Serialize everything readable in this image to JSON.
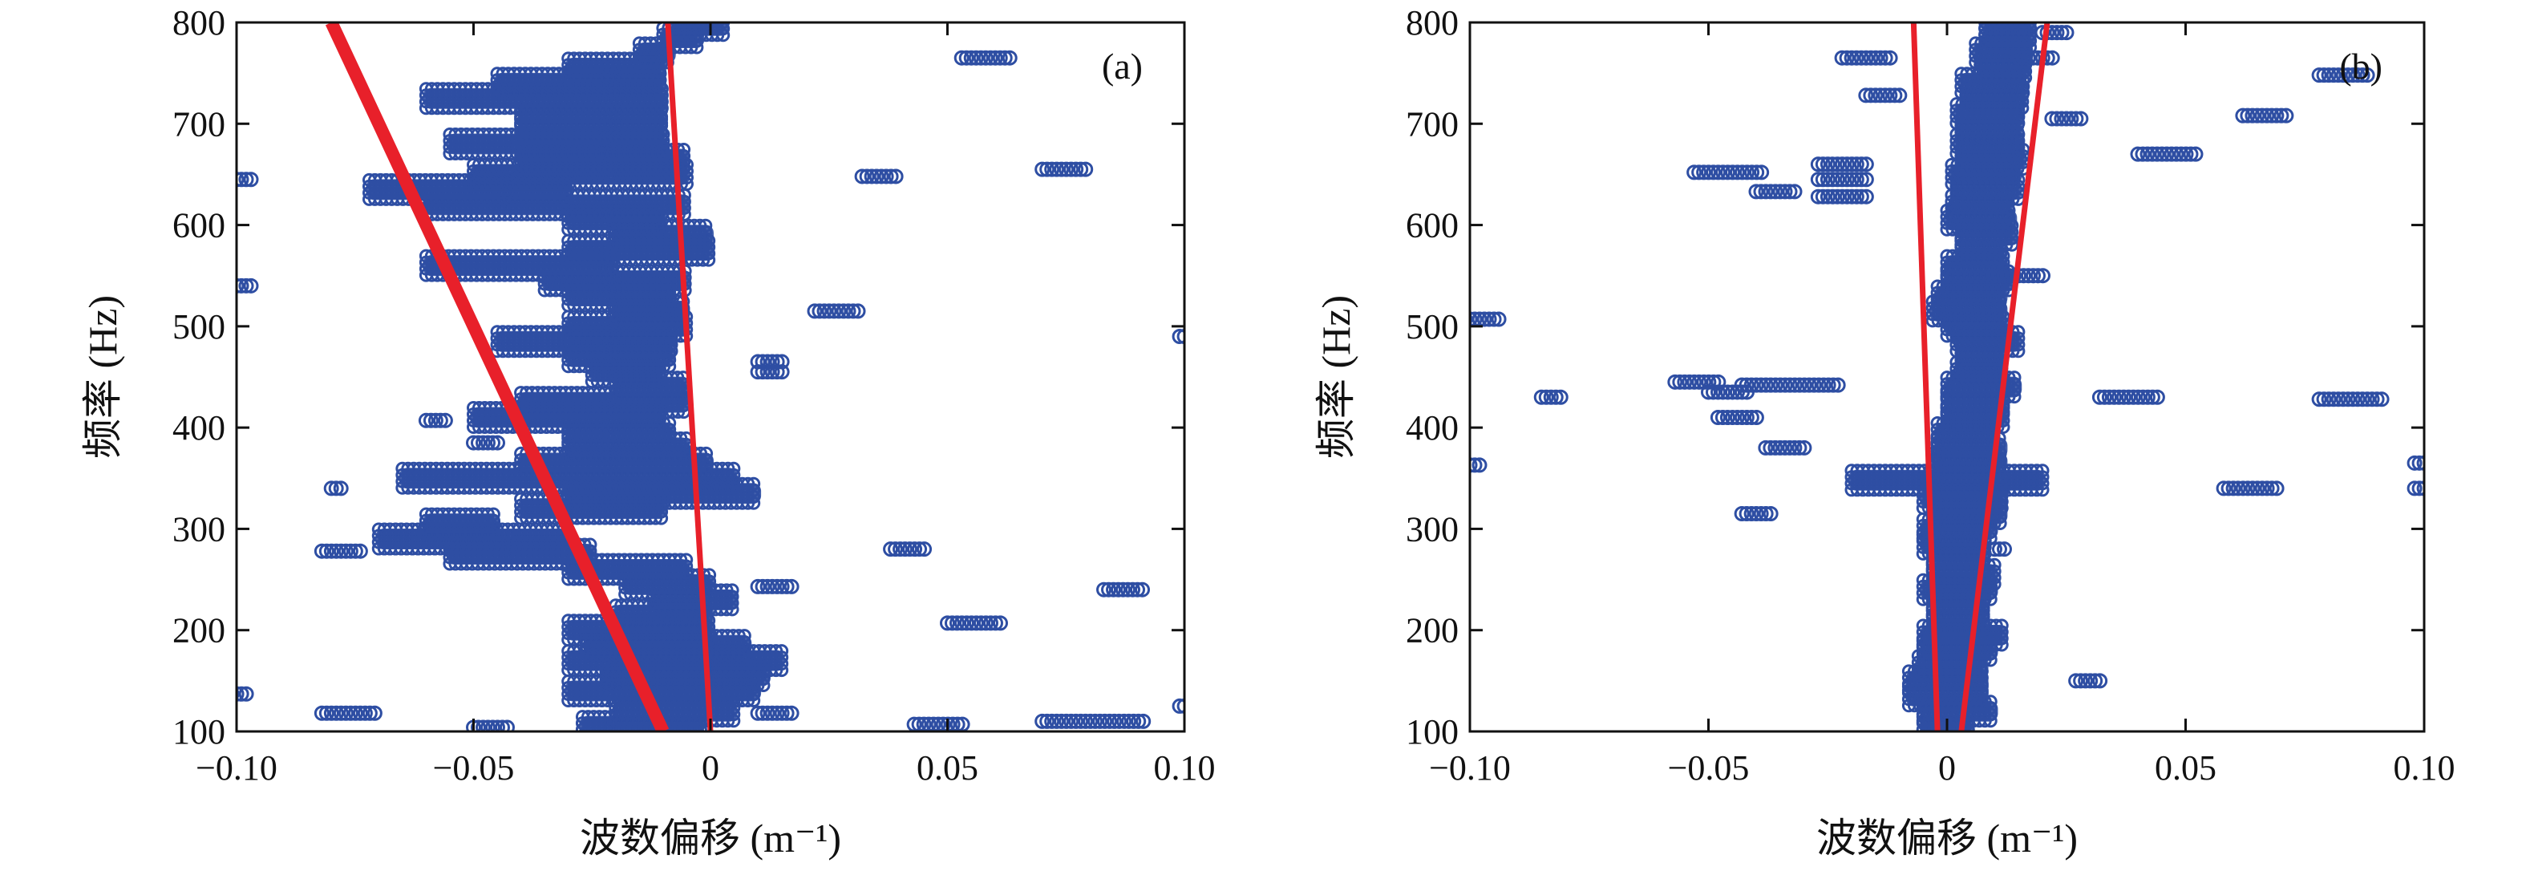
{
  "figure": {
    "panels": [
      {
        "id": "a",
        "tag": "(a)",
        "xlabel": "波数偏移 (m⁻¹)",
        "ylabel": "频率 (Hz)"
      },
      {
        "id": "b",
        "tag": "(b)",
        "xlabel": "波数偏移 (m⁻¹)",
        "ylabel": "频率 (Hz)"
      }
    ]
  },
  "chart_data": [
    {
      "type": "scatter",
      "panel_label": "(a)",
      "title": "",
      "xlabel": "波数偏移 (m⁻¹)",
      "ylabel": "频率 (Hz)",
      "xlim": [
        -0.1,
        0.1
      ],
      "ylim": [
        100,
        800
      ],
      "xticks": [
        "−0.10",
        "−0.05",
        "0",
        "0.05",
        "0.10"
      ],
      "yticks": [
        "100",
        "200",
        "300",
        "400",
        "500",
        "600",
        "700",
        "800"
      ],
      "grid": false,
      "marker_color": "#2e4ea3",
      "line_color": "#e8202a",
      "main_band": [
        [
          -0.027,
          -0.002,
          105
        ],
        [
          -0.02,
          0.005,
          120
        ],
        [
          -0.03,
          0.01,
          140
        ],
        [
          -0.022,
          0.012,
          155
        ],
        [
          -0.03,
          0.015,
          170
        ],
        [
          -0.026,
          0.008,
          185
        ],
        [
          -0.03,
          0.0,
          200
        ],
        [
          -0.02,
          0.0,
          215
        ],
        [
          -0.012,
          0.005,
          230
        ],
        [
          -0.018,
          0.0,
          245
        ],
        [
          -0.03,
          -0.005,
          260
        ],
        [
          -0.055,
          -0.025,
          275
        ],
        [
          -0.07,
          -0.03,
          290
        ],
        [
          -0.06,
          -0.045,
          305
        ],
        [
          -0.04,
          -0.01,
          320
        ],
        [
          -0.03,
          0.01,
          335
        ],
        [
          -0.065,
          0.005,
          350
        ],
        [
          -0.04,
          0.0,
          365
        ],
        [
          -0.03,
          -0.005,
          380
        ],
        [
          -0.03,
          -0.008,
          395
        ],
        [
          -0.05,
          -0.01,
          410
        ],
        [
          -0.04,
          -0.005,
          425
        ],
        [
          -0.02,
          -0.005,
          440
        ],
        [
          -0.025,
          -0.01,
          455
        ],
        [
          -0.03,
          -0.008,
          470
        ],
        [
          -0.045,
          -0.008,
          485
        ],
        [
          -0.03,
          -0.005,
          500
        ],
        [
          -0.02,
          -0.005,
          515
        ],
        [
          -0.03,
          -0.008,
          530
        ],
        [
          -0.035,
          -0.005,
          545
        ],
        [
          -0.06,
          -0.02,
          560
        ],
        [
          -0.03,
          0.0,
          575
        ],
        [
          -0.02,
          0.0,
          590
        ],
        [
          -0.03,
          -0.01,
          605
        ],
        [
          -0.06,
          -0.005,
          620
        ],
        [
          -0.072,
          -0.03,
          635
        ],
        [
          -0.05,
          -0.005,
          650
        ],
        [
          -0.04,
          -0.005,
          665
        ],
        [
          -0.055,
          -0.01,
          680
        ],
        [
          -0.04,
          -0.01,
          695
        ],
        [
          -0.04,
          -0.01,
          710
        ],
        [
          -0.06,
          -0.01,
          725
        ],
        [
          -0.045,
          -0.01,
          740
        ],
        [
          -0.03,
          -0.01,
          755
        ],
        [
          -0.015,
          -0.008,
          770
        ],
        [
          -0.01,
          -0.002,
          785
        ],
        [
          -0.008,
          0.003,
          797
        ]
      ],
      "outliers": [
        [
          -0.1,
          -0.097,
          645
        ],
        [
          -0.1,
          -0.097,
          540
        ],
        [
          -0.101,
          -0.098,
          137
        ],
        [
          -0.08,
          -0.078,
          340
        ],
        [
          -0.082,
          -0.073,
          278
        ],
        [
          -0.082,
          -0.07,
          118
        ],
        [
          -0.06,
          -0.056,
          407
        ],
        [
          -0.05,
          -0.045,
          385
        ],
        [
          -0.05,
          -0.042,
          104
        ],
        [
          0.01,
          0.016,
          465
        ],
        [
          0.01,
          0.016,
          455
        ],
        [
          0.01,
          0.018,
          243
        ],
        [
          0.01,
          0.018,
          118
        ],
        [
          0.022,
          0.032,
          515
        ],
        [
          0.032,
          0.04,
          648
        ],
        [
          0.038,
          0.046,
          280
        ],
        [
          0.043,
          0.054,
          107
        ],
        [
          0.05,
          0.062,
          207
        ],
        [
          0.053,
          0.064,
          765
        ],
        [
          0.07,
          0.08,
          655
        ],
        [
          0.07,
          0.092,
          110
        ],
        [
          0.083,
          0.092,
          240
        ],
        [
          0.099,
          0.1,
          125
        ],
        [
          0.099,
          0.1,
          490
        ]
      ],
      "fit_lines": [
        {
          "x": [
            -0.08,
            -0.01
          ],
          "y": [
            800,
            100
          ],
          "weight": "thick"
        },
        {
          "x": [
            -0.009,
            0.0
          ],
          "y": [
            800,
            100
          ],
          "weight": "thin"
        }
      ]
    },
    {
      "type": "scatter",
      "panel_label": "(b)",
      "title": "",
      "xlabel": "波数偏移 (m⁻¹)",
      "ylabel": "频率 (Hz)",
      "xlim": [
        -0.1,
        0.1
      ],
      "ylim": [
        100,
        800
      ],
      "xticks": [
        "−0.10",
        "−0.05",
        "0",
        "0.05",
        "0.10"
      ],
      "yticks": [
        "100",
        "200",
        "300",
        "400",
        "500",
        "600",
        "700",
        "800"
      ],
      "grid": false,
      "marker_color": "#2e4ea3",
      "line_color": "#e8202a",
      "main_band": [
        [
          -0.005,
          0.005,
          105
        ],
        [
          -0.005,
          0.01,
          120
        ],
        [
          -0.008,
          0.008,
          135
        ],
        [
          -0.008,
          0.008,
          150
        ],
        [
          -0.006,
          0.008,
          165
        ],
        [
          -0.005,
          0.01,
          180
        ],
        [
          -0.005,
          0.012,
          195
        ],
        [
          -0.003,
          0.008,
          210
        ],
        [
          -0.003,
          0.008,
          225
        ],
        [
          -0.005,
          0.01,
          240
        ],
        [
          -0.003,
          0.01,
          255
        ],
        [
          -0.003,
          0.008,
          270
        ],
        [
          -0.005,
          0.008,
          285
        ],
        [
          -0.005,
          0.01,
          300
        ],
        [
          -0.003,
          0.012,
          315
        ],
        [
          -0.005,
          0.012,
          330
        ],
        [
          -0.02,
          0.02,
          348
        ],
        [
          -0.003,
          0.012,
          365
        ],
        [
          -0.002,
          0.012,
          380
        ],
        [
          -0.002,
          0.01,
          395
        ],
        [
          0.0,
          0.012,
          410
        ],
        [
          0.0,
          0.012,
          425
        ],
        [
          0.0,
          0.015,
          440
        ],
        [
          0.002,
          0.012,
          455
        ],
        [
          0.003,
          0.012,
          470
        ],
        [
          0.002,
          0.015,
          485
        ],
        [
          0.0,
          0.012,
          500
        ],
        [
          -0.003,
          0.012,
          515
        ],
        [
          -0.002,
          0.012,
          530
        ],
        [
          0.0,
          0.014,
          545
        ],
        [
          0.0,
          0.012,
          560
        ],
        [
          0.003,
          0.012,
          575
        ],
        [
          0.003,
          0.014,
          590
        ],
        [
          0.0,
          0.014,
          605
        ],
        [
          0.001,
          0.013,
          620
        ],
        [
          0.002,
          0.015,
          635
        ],
        [
          0.001,
          0.015,
          650
        ],
        [
          0.003,
          0.016,
          665
        ],
        [
          0.002,
          0.015,
          680
        ],
        [
          0.003,
          0.015,
          695
        ],
        [
          0.002,
          0.015,
          710
        ],
        [
          0.004,
          0.016,
          725
        ],
        [
          0.003,
          0.016,
          740
        ],
        [
          0.007,
          0.017,
          755
        ],
        [
          0.006,
          0.017,
          770
        ],
        [
          0.008,
          0.018,
          785
        ],
        [
          0.008,
          0.018,
          797
        ]
      ],
      "outliers": [
        [
          -0.101,
          -0.094,
          507
        ],
        [
          -0.1,
          -0.098,
          363
        ],
        [
          -0.085,
          -0.081,
          430
        ],
        [
          -0.057,
          -0.048,
          445
        ],
        [
          -0.053,
          -0.038,
          652
        ],
        [
          -0.05,
          -0.042,
          435
        ],
        [
          -0.048,
          -0.04,
          410
        ],
        [
          -0.043,
          -0.022,
          442
        ],
        [
          -0.043,
          -0.037,
          315
        ],
        [
          -0.04,
          -0.032,
          633
        ],
        [
          -0.038,
          -0.03,
          380
        ],
        [
          -0.027,
          -0.017,
          660
        ],
        [
          -0.027,
          -0.017,
          645
        ],
        [
          -0.027,
          -0.017,
          628
        ],
        [
          -0.022,
          -0.012,
          765
        ],
        [
          -0.017,
          -0.01,
          728
        ],
        [
          0.01,
          0.012,
          280
        ],
        [
          0.01,
          0.02,
          550
        ],
        [
          0.015,
          0.022,
          765
        ],
        [
          0.02,
          0.025,
          790
        ],
        [
          0.022,
          0.028,
          705
        ],
        [
          0.027,
          0.032,
          150
        ],
        [
          0.032,
          0.045,
          430
        ],
        [
          0.04,
          0.053,
          670
        ],
        [
          0.058,
          0.07,
          340
        ],
        [
          0.062,
          0.072,
          708
        ],
        [
          0.078,
          0.088,
          748
        ],
        [
          0.078,
          0.092,
          428
        ],
        [
          0.098,
          0.1,
          340
        ],
        [
          0.098,
          0.1,
          365
        ]
      ],
      "fit_lines": [
        {
          "x": [
            -0.007,
            -0.002
          ],
          "y": [
            800,
            100
          ],
          "weight": "thin"
        },
        {
          "x": [
            0.021,
            0.003
          ],
          "y": [
            800,
            100
          ],
          "weight": "thin"
        }
      ]
    }
  ]
}
